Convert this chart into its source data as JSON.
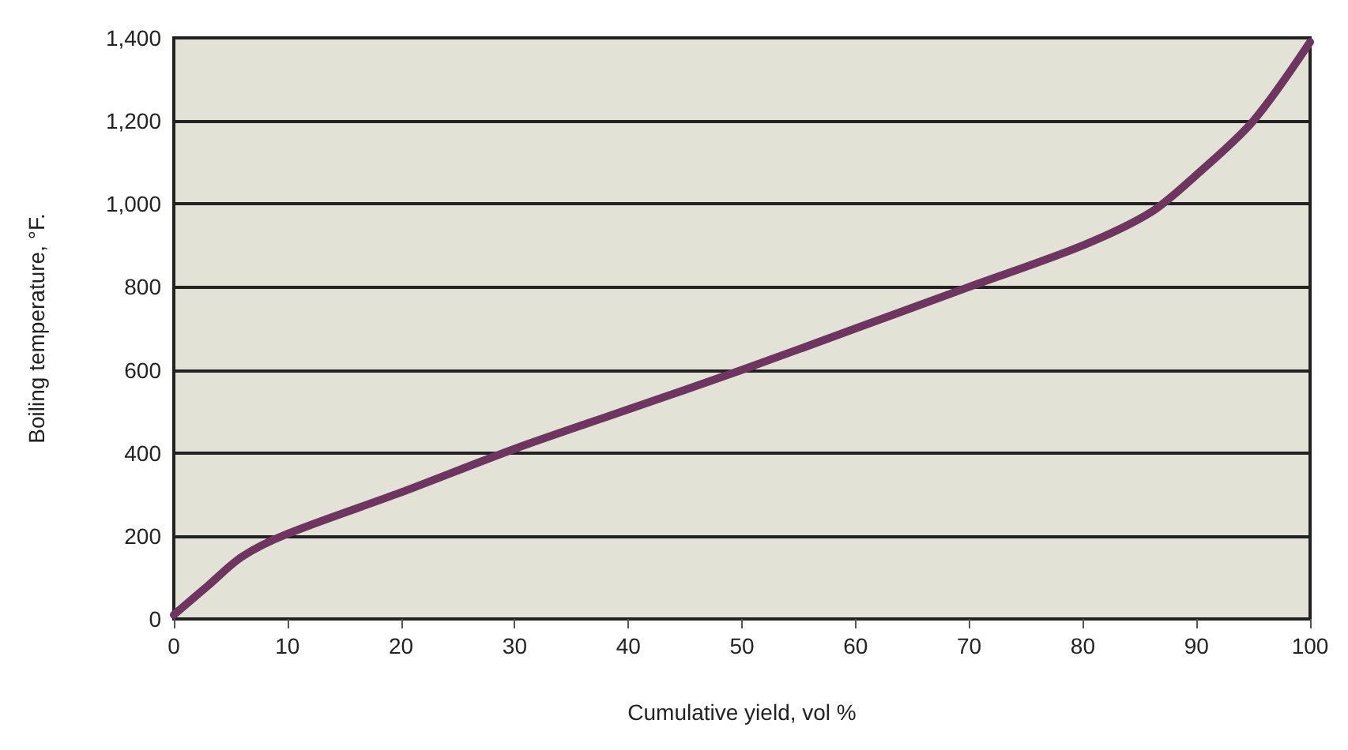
{
  "chart_data": {
    "type": "line",
    "xlabel": "Cumulative yield, vol %",
    "ylabel": "Boiling temperature, °F.",
    "x": [
      0,
      3,
      6,
      10,
      20,
      30,
      40,
      50,
      60,
      70,
      80,
      86,
      90,
      95,
      100
    ],
    "series": [
      {
        "color": "#6e3560",
        "values": [
          10,
          80,
          150,
          205,
          305,
          410,
          505,
          600,
          700,
          800,
          900,
          980,
          1070,
          1200,
          1390
        ]
      }
    ],
    "xlim": [
      0,
      100
    ],
    "xticks": [
      0,
      10,
      20,
      30,
      40,
      50,
      60,
      70,
      80,
      90,
      100
    ],
    "ylim": [
      0,
      1400
    ],
    "yticks": [
      0,
      200,
      400,
      600,
      800,
      {
        "value": 1000,
        "label": "1,000"
      },
      {
        "value": 1200,
        "label": "1,200"
      },
      {
        "value": 1400,
        "label": "1,400"
      }
    ],
    "grid": "y",
    "marker": "none",
    "line_style": "solid"
  }
}
